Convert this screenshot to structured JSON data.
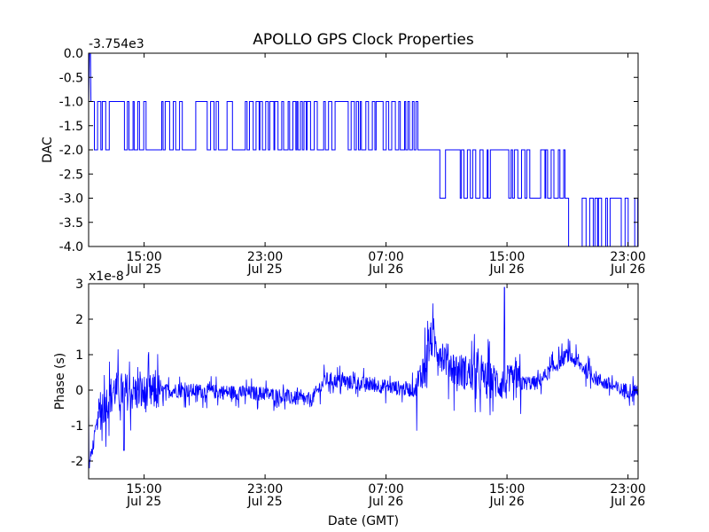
{
  "chart_data": [
    {
      "type": "line",
      "title": "APOLLO GPS Clock Properties",
      "offset_label": "-3.754e3",
      "ylabel": "DAC",
      "xlabel": "",
      "ylim": [
        -4.0,
        0.0
      ],
      "y_ticks": [
        "0.0",
        "-0.5",
        "-1.0",
        "-1.5",
        "-2.0",
        "-2.5",
        "-3.0",
        "-3.5",
        "-4.0"
      ],
      "x_ticks": [
        {
          "time": "15:00",
          "date": "Jul 25"
        },
        {
          "time": "23:00",
          "date": "Jul 25"
        },
        {
          "time": "07:00",
          "date": "Jul 26"
        },
        {
          "time": "15:00",
          "date": "Jul 26"
        },
        {
          "time": "23:00",
          "date": "Jul 26"
        }
      ],
      "x_range_hours": [
        "2012-07-25 11:20",
        "2012-07-26 23:40"
      ],
      "series": [
        {
          "color": "#0000ff",
          "segments": [
            {
              "x_start": "Jul 25 11:20",
              "x_end": "Jul 25 11:30",
              "levels": [
                0,
                -1
              ],
              "note": "initial spike to 0.0 then settles"
            },
            {
              "x_start": "Jul 25 11:30",
              "x_end": "Jul 26 09:10",
              "levels": [
                -1,
                -2
              ]
            },
            {
              "x_start": "Jul 26 09:10",
              "x_end": "Jul 26 10:20",
              "levels": [
                -2
              ]
            },
            {
              "x_start": "Jul 26 10:20",
              "x_end": "Jul 26 18:50",
              "levels": [
                -2,
                -3
              ]
            },
            {
              "x_start": "Jul 26 18:50",
              "x_end": "Jul 26 23:40",
              "levels": [
                -3,
                -4
              ]
            }
          ]
        }
      ]
    },
    {
      "type": "line",
      "offset_label": "x1e-8",
      "ylabel": "Phase (s)",
      "xlabel": "Date (GMT)",
      "ylim": [
        -2.5,
        3.0
      ],
      "y_ticks": [
        "3",
        "2",
        "1",
        "0",
        "-1",
        "-2"
      ],
      "x_ticks": [
        {
          "time": "15:00",
          "date": "Jul 25"
        },
        {
          "time": "23:00",
          "date": "Jul 25"
        },
        {
          "time": "07:00",
          "date": "Jul 26"
        },
        {
          "time": "15:00",
          "date": "Jul 26"
        },
        {
          "time": "23:00",
          "date": "Jul 26"
        }
      ],
      "series": [
        {
          "color": "#0000ff",
          "baseline": [
            {
              "x": "Jul 25 11:20",
              "y": -2.2
            },
            {
              "x": "Jul 25 12:00",
              "y": -0.7
            },
            {
              "x": "Jul 25 13:00",
              "y": 0.0
            },
            {
              "x": "Jul 25 15:00",
              "y": -0.1
            },
            {
              "x": "Jul 25 17:00",
              "y": 0.0
            },
            {
              "x": "Jul 25 23:00",
              "y": -0.1
            },
            {
              "x": "Jul 26 02:00",
              "y": -0.3
            },
            {
              "x": "Jul 26 03:00",
              "y": 0.3
            },
            {
              "x": "Jul 26 07:00",
              "y": 0.1
            },
            {
              "x": "Jul 26 09:00",
              "y": 0.0
            },
            {
              "x": "Jul 26 10:00",
              "y": 1.4
            },
            {
              "x": "Jul 26 11:30",
              "y": 0.6
            },
            {
              "x": "Jul 26 14:30",
              "y": 0.2
            },
            {
              "x": "Jul 26 17:00",
              "y": 0.2
            },
            {
              "x": "Jul 26 19:00",
              "y": 1.0
            },
            {
              "x": "Jul 26 21:00",
              "y": 0.3
            },
            {
              "x": "Jul 26 22:30",
              "y": 0.0
            },
            {
              "x": "Jul 26 23:40",
              "y": 0.0
            }
          ],
          "peak": {
            "x": "Jul 26 14:50",
            "y": 2.9
          },
          "trough": {
            "x": "Jul 25 13:40",
            "y": -1.7
          }
        }
      ]
    }
  ]
}
